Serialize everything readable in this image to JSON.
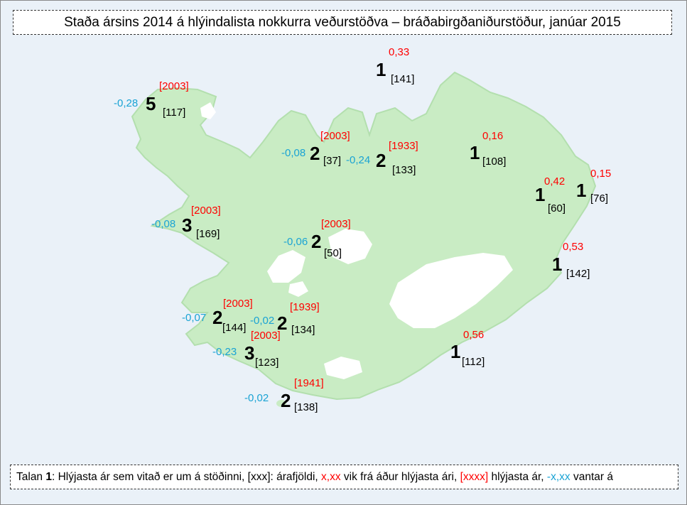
{
  "title": "Staða ársins 2014 á hlýindalista nokkurra veðurstöðva – bráðabirgðaniðurstöður, janúar 2015",
  "colors": {
    "background": "#eaf1f8",
    "land": "#c9ecc4",
    "glacier": "#ffffff",
    "positive": "#ff0000",
    "warmest_year": "#ff0000",
    "missing": "#1aa3d4"
  },
  "legend": {
    "part1": "Talan ",
    "rank_example": "1",
    "part2": ": Hlýjasta ár sem vitað er um á stöðinni, [xxx]: árafjöldi, ",
    "red_example": "x,xx",
    "part3": " vik frá áður hlýjasta ári, ",
    "red_year_example": "[xxxx]",
    "part4": " hlýjasta ár, ",
    "blue_example": "-x,xx",
    "part5": " vantar á"
  },
  "stations": [
    {
      "id": "grimsey",
      "rank": "1",
      "years": "[141]",
      "diff": "0,33",
      "diff_type": "positive",
      "warmest_year": ""
    },
    {
      "id": "vestfirdir-nw",
      "rank": "5",
      "years": "[117]",
      "diff": "-0,28",
      "diff_type": "negative",
      "warmest_year": "[2003]"
    },
    {
      "id": "skagi",
      "rank": "2",
      "years": "[37]",
      "diff": "-0,08",
      "diff_type": "negative",
      "warmest_year": "[2003]"
    },
    {
      "id": "akureyri",
      "rank": "2",
      "years": "[133]",
      "diff": "-0,24",
      "diff_type": "negative",
      "warmest_year": "[1933]"
    },
    {
      "id": "grimsstadir",
      "rank": "1",
      "years": "[108]",
      "diff": "0,16",
      "diff_type": "positive",
      "warmest_year": ""
    },
    {
      "id": "egilsstadir",
      "rank": "1",
      "years": "[60]",
      "diff": "0,42",
      "diff_type": "positive",
      "warmest_year": ""
    },
    {
      "id": "dalatangi",
      "rank": "1",
      "years": "[76]",
      "diff": "0,15",
      "diff_type": "positive",
      "warmest_year": ""
    },
    {
      "id": "stykkisholmur",
      "rank": "3",
      "years": "[169]",
      "diff": "-0,08",
      "diff_type": "negative",
      "warmest_year": "[2003]"
    },
    {
      "id": "hveravellir",
      "rank": "2",
      "years": "[50]",
      "diff": "-0,06",
      "diff_type": "negative",
      "warmest_year": "[2003]"
    },
    {
      "id": "teigarhorn",
      "rank": "1",
      "years": "[142]",
      "diff": "0,53",
      "diff_type": "positive",
      "warmest_year": ""
    },
    {
      "id": "reykjavik",
      "rank": "2",
      "years": "[144]",
      "diff": "-0,07",
      "diff_type": "negative",
      "warmest_year": "[2003]"
    },
    {
      "id": "haell",
      "rank": "2",
      "years": "[134]",
      "diff": "-0,02",
      "diff_type": "negative",
      "warmest_year": "[1939]"
    },
    {
      "id": "eyrarbakki",
      "rank": "3",
      "years": "[123]",
      "diff": "-0,23",
      "diff_type": "negative",
      "warmest_year": "[2003]"
    },
    {
      "id": "fagurholsmyri",
      "rank": "1",
      "years": "[112]",
      "diff": "0,56",
      "diff_type": "positive",
      "warmest_year": ""
    },
    {
      "id": "vestmannaeyjar",
      "rank": "2",
      "years": "[138]",
      "diff": "-0,02",
      "diff_type": "negative",
      "warmest_year": "[1941]"
    }
  ]
}
